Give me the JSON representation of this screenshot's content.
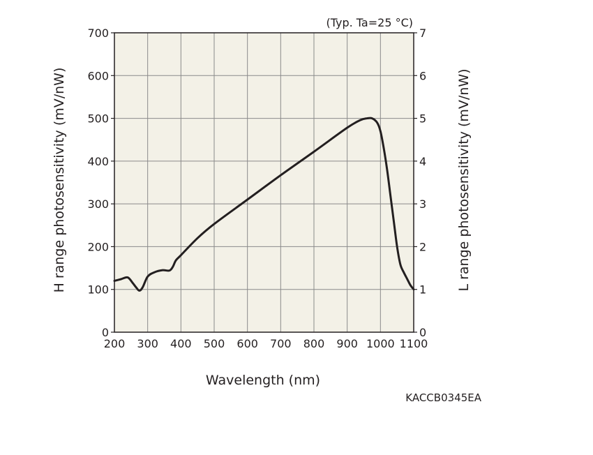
{
  "chart_data": {
    "type": "line",
    "note": "(Typ. Ta=25 °C)",
    "xlabel": "Wavelength (nm)",
    "ylabel": "H range photosensitivity (mV/nW)",
    "y2label": "L range photosensitivity (mV/nW)",
    "xlim": [
      200,
      1100
    ],
    "ylim": [
      0,
      700
    ],
    "y2lim": [
      0,
      7
    ],
    "grid": true,
    "x_ticks": [
      "200",
      "300",
      "400",
      "500",
      "600",
      "700",
      "800",
      "900",
      "1000",
      "1100"
    ],
    "y_ticks": [
      "0",
      "100",
      "200",
      "300",
      "400",
      "500",
      "600",
      "700"
    ],
    "y2_ticks": [
      "0",
      "1",
      "2",
      "3",
      "4",
      "5",
      "6",
      "7"
    ],
    "series": [
      {
        "x": [
          200,
          220,
          240,
          255,
          265,
          275,
          285,
          300,
          320,
          345,
          365,
          375,
          385,
          400,
          450,
          500,
          600,
          700,
          800,
          900,
          940,
          960,
          975,
          990,
          1000,
          1010,
          1020,
          1030,
          1040,
          1050,
          1060,
          1070,
          1080,
          1090,
          1100
        ],
        "y": [
          120,
          124,
          128,
          115,
          105,
          97,
          105,
          130,
          140,
          145,
          144,
          152,
          168,
          180,
          220,
          253,
          310,
          367,
          422,
          478,
          496,
          500,
          500,
          490,
          470,
          430,
          380,
          320,
          260,
          200,
          158,
          140,
          125,
          110,
          100
        ]
      }
    ]
  },
  "code": "KACCB0345EA",
  "colors": {
    "plot_bg": "#f3f1e7",
    "line": "#231f20",
    "grid": "#8a8a8a"
  }
}
